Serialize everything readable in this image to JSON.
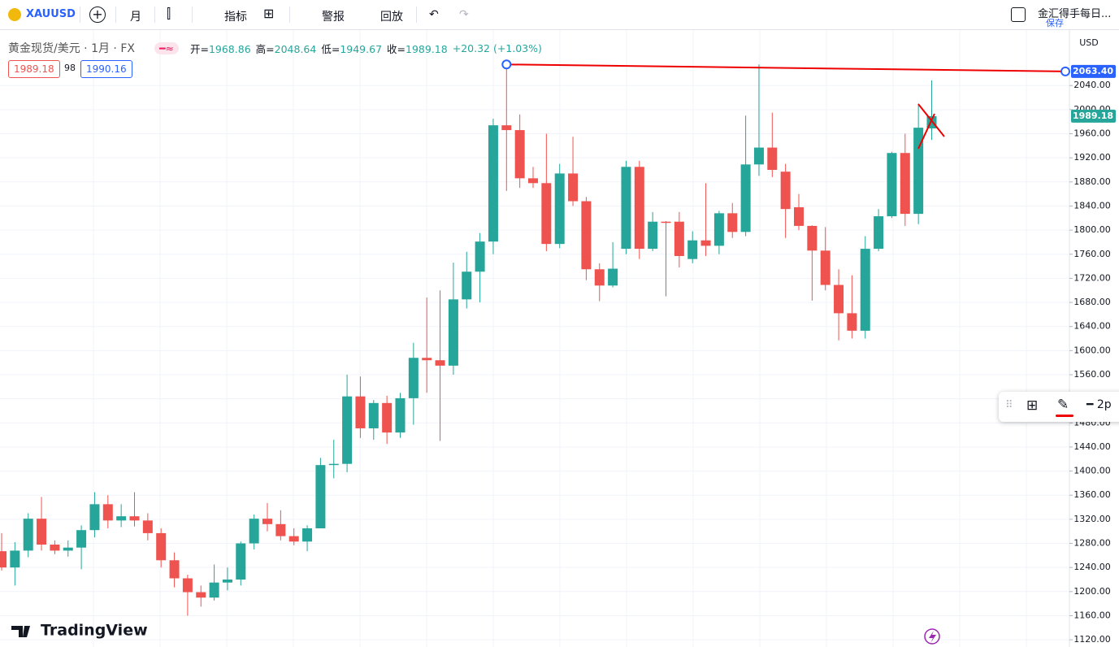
{
  "toolbar": {
    "symbol": "XAUUSD",
    "interval": "月",
    "indicators": "指标",
    "alerts": "警报",
    "replay": "回放",
    "layout_name": "金汇得手每日...",
    "save": "保存"
  },
  "legend": {
    "title": "黄金现货/美元 · 1月 · FX",
    "open_label": "开=",
    "high_label": "高=",
    "low_label": "低=",
    "close_label": "收=",
    "change": "+20.32 (+1.03%)",
    "bid": "1989.18",
    "spread": "98",
    "ask": "1990.16"
  },
  "price_axis": {
    "currency": "USD"
  },
  "drawing_toolbar": {
    "width": "2p"
  },
  "brand": "TradingView",
  "chart_data": {
    "type": "candlestick",
    "up_color": "#26a69a",
    "down_color": "#ef5350",
    "grid": true,
    "open": [
      1267,
      1240,
      1268,
      1321,
      1278,
      1268,
      1273,
      1302,
      1345,
      1318,
      1325,
      1318,
      1297,
      1252,
      1222,
      1199,
      1190,
      1215,
      1220,
      1280,
      1321,
      1312,
      1292,
      1283,
      1305,
      1410,
      1412,
      1524,
      1471,
      1513,
      1464,
      1521,
      1588,
      1584,
      1575,
      1685,
      1731,
      1781,
      1974,
      1966,
      1886,
      1878,
      1777,
      1894,
      1848,
      1735,
      1708,
      1769,
      1905,
      1769,
      1814,
      1814,
      1752,
      1783,
      1774,
      1828,
      1797,
      1909,
      1937,
      1897,
      1838,
      1807,
      1766,
      1709,
      1662,
      1633,
      1769,
      1823,
      1928,
      1827,
      1968.86
    ],
    "high": [
      1297,
      1282,
      1330,
      1357,
      1285,
      1285,
      1310,
      1365,
      1360,
      1345,
      1365,
      1330,
      1305,
      1265,
      1228,
      1210,
      1245,
      1240,
      1283,
      1328,
      1347,
      1335,
      1305,
      1310,
      1422,
      1452,
      1560,
      1557,
      1518,
      1525,
      1530,
      1613,
      1688,
      1700,
      1746,
      1764,
      1795,
      1985,
      2075,
      1992,
      1905,
      1960,
      1910,
      1955,
      1855,
      1745,
      1780,
      1915,
      1915,
      1830,
      1815,
      1830,
      1798,
      1878,
      1832,
      1845,
      1990,
      2075,
      1995,
      1910,
      1860,
      1808,
      1805,
      1735,
      1725,
      1790,
      1835,
      1930,
      1960,
      2010,
      2048.64
    ],
    "low": [
      1235,
      1210,
      1257,
      1268,
      1262,
      1258,
      1237,
      1290,
      1305,
      1307,
      1308,
      1285,
      1240,
      1207,
      1160,
      1175,
      1185,
      1202,
      1210,
      1270,
      1300,
      1285,
      1277,
      1267,
      1305,
      1388,
      1398,
      1455,
      1452,
      1445,
      1455,
      1477,
      1530,
      1450,
      1560,
      1670,
      1680,
      1760,
      1865,
      1870,
      1870,
      1765,
      1770,
      1840,
      1717,
      1682,
      1705,
      1760,
      1752,
      1765,
      1690,
      1738,
      1745,
      1757,
      1760,
      1787,
      1790,
      1890,
      1888,
      1787,
      1800,
      1683,
      1700,
      1617,
      1620,
      1620,
      1765,
      1820,
      1807,
      1810,
      1949.67
    ],
    "close": [
      1240,
      1268,
      1321,
      1278,
      1268,
      1273,
      1302,
      1345,
      1318,
      1325,
      1318,
      1297,
      1252,
      1222,
      1199,
      1190,
      1215,
      1220,
      1280,
      1321,
      1312,
      1292,
      1283,
      1305,
      1410,
      1412,
      1524,
      1471,
      1513,
      1464,
      1521,
      1588,
      1584,
      1575,
      1685,
      1731,
      1781,
      1974,
      1966,
      1886,
      1878,
      1777,
      1894,
      1848,
      1735,
      1708,
      1736,
      1905,
      1769,
      1814,
      1812,
      1757,
      1783,
      1774,
      1828,
      1797,
      1909,
      1937,
      1900,
      1835,
      1807,
      1766,
      1709,
      1662,
      1633,
      1769,
      1823,
      1928,
      1827,
      1970,
      1989.18
    ],
    "ylim": [
      1108,
      2128
    ],
    "yticks": [
      {
        "value": 1120,
        "label": "1120.00"
      },
      {
        "value": 1160,
        "label": "1160.00"
      },
      {
        "value": 1200,
        "label": "1200.00"
      },
      {
        "value": 1240,
        "label": "1240.00"
      },
      {
        "value": 1280,
        "label": "1280.00"
      },
      {
        "value": 1320,
        "label": "1320.00"
      },
      {
        "value": 1360,
        "label": "1360.00"
      },
      {
        "value": 1400,
        "label": "1400.00"
      },
      {
        "value": 1440,
        "label": "1440.00"
      },
      {
        "value": 1480,
        "label": "1480.00"
      },
      {
        "value": 1520,
        "label": "1520.00"
      },
      {
        "value": 1560,
        "label": "1560.00"
      },
      {
        "value": 1600,
        "label": "1600.00"
      },
      {
        "value": 1640,
        "label": "1640.00"
      },
      {
        "value": 1680,
        "label": "1680.00"
      },
      {
        "value": 1720,
        "label": "1720.00"
      },
      {
        "value": 1760,
        "label": "1760.00"
      },
      {
        "value": 1800,
        "label": "1800.00"
      },
      {
        "value": 1840,
        "label": "1840.00"
      },
      {
        "value": 1880,
        "label": "1880.00"
      },
      {
        "value": 1920,
        "label": "1920.00"
      },
      {
        "value": 1960,
        "label": "1960.00"
      },
      {
        "value": 2000,
        "label": "2000.00"
      },
      {
        "value": 2040,
        "label": "2040.00"
      }
    ],
    "trend_line": {
      "values": [
        2075,
        2063.4
      ],
      "end_label": "2063.40"
    }
  }
}
